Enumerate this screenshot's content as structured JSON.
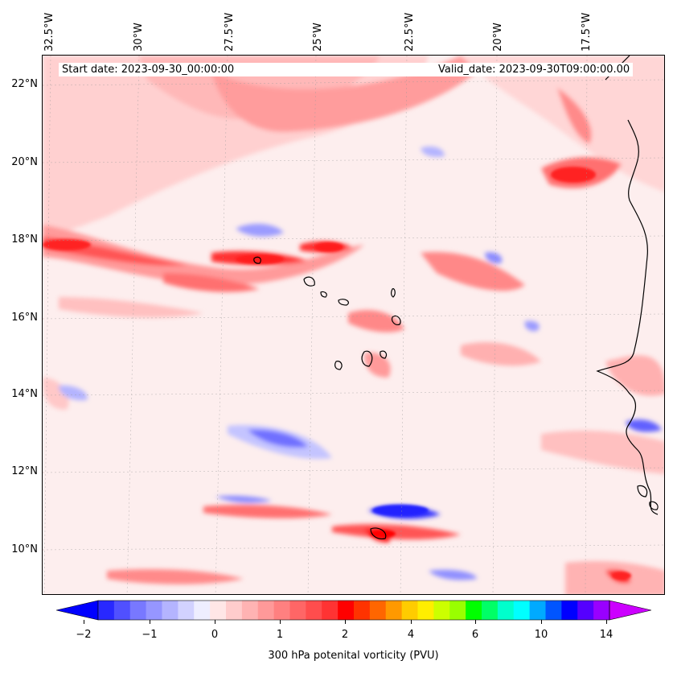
{
  "map": {
    "start_date": "Start date: 2023-09-30_00:00:00",
    "valid_date": "Valid_date: 2023-09-30T09:00:00.00",
    "lon_labels": [
      "32.5°W",
      "30°W",
      "27.5°W",
      "25°W",
      "22.5°W",
      "20°W",
      "17.5°W"
    ],
    "lat_labels": [
      "22°N",
      "20°N",
      "18°N",
      "16°N",
      "14°N",
      "12°N",
      "10°N"
    ],
    "colors": {
      "strong_red": "#ff1a1a",
      "red": "#ff5050",
      "mid_red": "#ff8080",
      "light_red": "#ffb3b3",
      "pale_red": "#ffd6d6",
      "faint": "#fdecec",
      "light_blue": "#c8c8ff",
      "blue": "#8c8cff",
      "deep_blue": "#3232ff",
      "coast": "#000000"
    }
  },
  "colorbar": {
    "label": "300 hPa potenital vorticity (PVU)",
    "tick_labels": [
      "−2",
      "−1",
      "0",
      "1",
      "2",
      "4",
      "6",
      "10",
      "14"
    ],
    "colors": [
      "#0000ff",
      "#2828ff",
      "#5050ff",
      "#7878ff",
      "#9696ff",
      "#b4b4ff",
      "#d2d2ff",
      "#eeeeff",
      "#ffe6e6",
      "#ffcccc",
      "#ffb3b3",
      "#ff9999",
      "#ff8080",
      "#ff6666",
      "#ff4d4d",
      "#ff3333",
      "#ff0000",
      "#ff3300",
      "#ff6600",
      "#ff9900",
      "#ffcc00",
      "#ffee00",
      "#ccff00",
      "#99ff00",
      "#00ff00",
      "#00ff66",
      "#00ffcc",
      "#00ffff",
      "#00aaff",
      "#0055ff",
      "#0000ff",
      "#5500ff",
      "#9900ff",
      "#cc00ff"
    ]
  }
}
